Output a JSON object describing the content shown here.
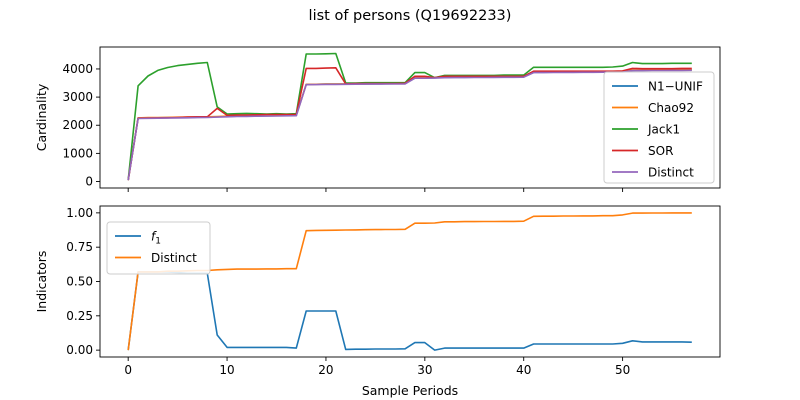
{
  "figure": {
    "title": "list of persons (Q19692233)"
  },
  "colors": {
    "N1-UNIF": "#1f77b4",
    "Chao92": "#ff7f0e",
    "Jack1": "#2ca02c",
    "SOR": "#d62728",
    "Distinct": "#9467bd",
    "f1": "#1f77b4",
    "DistinctRatio": "#ff7f0e"
  },
  "chart_data": [
    {
      "type": "line",
      "title": "list of persons (Q19692233)",
      "xlabel": "",
      "ylabel": "Cardinality",
      "xlim": [
        -2.85,
        59.85
      ],
      "ylim": [
        -230,
        4780
      ],
      "xticks": [
        0,
        10,
        20,
        30,
        40,
        50
      ],
      "yticks": [
        0,
        1000,
        2000,
        3000,
        4000
      ],
      "ytick_labels": [
        "0",
        "1000",
        "2000",
        "3000",
        "4000"
      ],
      "x_tick_labels_visible": false,
      "legend": "right",
      "grid": false,
      "x": [
        0,
        1,
        2,
        3,
        4,
        5,
        6,
        7,
        8,
        9,
        10,
        11,
        12,
        13,
        14,
        15,
        16,
        17,
        18,
        19,
        20,
        21,
        22,
        23,
        24,
        25,
        26,
        27,
        28,
        29,
        30,
        31,
        32,
        33,
        34,
        35,
        36,
        37,
        38,
        39,
        40,
        41,
        42,
        43,
        44,
        45,
        46,
        47,
        48,
        49,
        50,
        51,
        52,
        53,
        54,
        55,
        56,
        57
      ],
      "series": [
        {
          "name": "N1−UNIF",
          "color_key": "N1-UNIF",
          "values": [
            50,
            2250,
            2260,
            2265,
            2270,
            2275,
            2280,
            2285,
            2290,
            2300,
            2310,
            2320,
            2325,
            2330,
            2335,
            2340,
            2345,
            2350,
            3450,
            3455,
            3460,
            3462,
            3465,
            3468,
            3470,
            3472,
            3474,
            3476,
            3478,
            3680,
            3682,
            3685,
            3700,
            3702,
            3704,
            3706,
            3708,
            3710,
            3712,
            3714,
            3716,
            3880,
            3882,
            3884,
            3886,
            3888,
            3890,
            3892,
            3894,
            3896,
            3898,
            3950,
            3952,
            3954,
            3956,
            3958,
            3960,
            3962
          ]
        },
        {
          "name": "Chao92",
          "color_key": "Chao92",
          "values": [
            50,
            2260,
            2270,
            2275,
            2280,
            2285,
            2290,
            2295,
            2300,
            2310,
            2320,
            2330,
            2335,
            2340,
            2345,
            2350,
            2355,
            2360,
            3450,
            3455,
            3460,
            3462,
            3470,
            3472,
            3474,
            3476,
            3478,
            3480,
            3482,
            3690,
            3692,
            3694,
            3710,
            3712,
            3714,
            3716,
            3718,
            3720,
            3722,
            3724,
            3726,
            3890,
            3892,
            3894,
            3896,
            3898,
            3900,
            3902,
            3904,
            3906,
            3908,
            3960,
            3962,
            3964,
            3966,
            3968,
            3970,
            3972
          ]
        },
        {
          "name": "Jack1",
          "color_key": "Jack1",
          "values": [
            50,
            3400,
            3750,
            3950,
            4050,
            4120,
            4160,
            4200,
            4230,
            2650,
            2400,
            2410,
            2420,
            2410,
            2400,
            2410,
            2400,
            2410,
            4530,
            4530,
            4540,
            4550,
            3500,
            3500,
            3510,
            3510,
            3510,
            3510,
            3510,
            3870,
            3870,
            3690,
            3770,
            3770,
            3770,
            3770,
            3770,
            3770,
            3780,
            3780,
            3780,
            4060,
            4060,
            4060,
            4060,
            4060,
            4060,
            4060,
            4060,
            4070,
            4100,
            4230,
            4190,
            4190,
            4190,
            4200,
            4200,
            4200
          ]
        },
        {
          "name": "SOR",
          "color_key": "SOR",
          "values": [
            50,
            2250,
            2255,
            2260,
            2265,
            2275,
            2290,
            2300,
            2300,
            2600,
            2350,
            2360,
            2360,
            2370,
            2380,
            2380,
            2380,
            2380,
            4020,
            4020,
            4030,
            4040,
            3470,
            3480,
            3480,
            3480,
            3480,
            3480,
            3490,
            3740,
            3740,
            3690,
            3740,
            3740,
            3740,
            3740,
            3740,
            3740,
            3740,
            3740,
            3740,
            3920,
            3920,
            3920,
            3920,
            3920,
            3920,
            3920,
            3920,
            3920,
            3930,
            4020,
            4010,
            4010,
            4010,
            4010,
            4020,
            4020
          ]
        },
        {
          "name": "Distinct",
          "color_key": "Distinct",
          "values": [
            50,
            2240,
            2245,
            2250,
            2255,
            2260,
            2265,
            2270,
            2275,
            2290,
            2300,
            2310,
            2315,
            2320,
            2325,
            2330,
            2335,
            2340,
            3440,
            3445,
            3450,
            3452,
            3455,
            3458,
            3460,
            3462,
            3464,
            3466,
            3468,
            3670,
            3672,
            3675,
            3690,
            3692,
            3694,
            3696,
            3698,
            3700,
            3702,
            3704,
            3706,
            3870,
            3872,
            3874,
            3876,
            3878,
            3880,
            3882,
            3884,
            3886,
            3888,
            3940,
            3942,
            3944,
            3946,
            3948,
            3950,
            3952
          ]
        }
      ]
    },
    {
      "type": "line",
      "title": "",
      "xlabel": "Sample Periods",
      "ylabel": "Indicators",
      "xlim": [
        -2.85,
        59.85
      ],
      "ylim": [
        -0.05,
        1.05
      ],
      "xticks": [
        0,
        10,
        20,
        30,
        40,
        50
      ],
      "xtick_labels": [
        "0",
        "10",
        "20",
        "30",
        "40",
        "50"
      ],
      "yticks": [
        0,
        0.25,
        0.5,
        0.75,
        1.0
      ],
      "ytick_labels": [
        "0.00",
        "0.25",
        "0.50",
        "0.75",
        "1.00"
      ],
      "legend": "top-left",
      "grid": false,
      "x": [
        0,
        1,
        2,
        3,
        4,
        5,
        6,
        7,
        8,
        9,
        10,
        11,
        12,
        13,
        14,
        15,
        16,
        17,
        18,
        19,
        20,
        21,
        22,
        23,
        24,
        25,
        26,
        27,
        28,
        29,
        30,
        31,
        32,
        33,
        34,
        35,
        36,
        37,
        38,
        39,
        40,
        41,
        42,
        43,
        44,
        45,
        46,
        47,
        48,
        49,
        50,
        51,
        52,
        53,
        54,
        55,
        56,
        57
      ],
      "series": [
        {
          "name": "f1",
          "color_key": "f1",
          "values": [
            0.0,
            0.57,
            0.57,
            0.57,
            0.57,
            0.565,
            0.56,
            0.56,
            0.56,
            0.11,
            0.02,
            0.02,
            0.02,
            0.02,
            0.02,
            0.02,
            0.02,
            0.015,
            0.285,
            0.285,
            0.285,
            0.285,
            0.005,
            0.007,
            0.007,
            0.008,
            0.008,
            0.008,
            0.01,
            0.055,
            0.055,
            0.0,
            0.015,
            0.015,
            0.015,
            0.015,
            0.015,
            0.015,
            0.015,
            0.015,
            0.015,
            0.045,
            0.045,
            0.045,
            0.045,
            0.045,
            0.045,
            0.045,
            0.045,
            0.045,
            0.05,
            0.068,
            0.06,
            0.06,
            0.06,
            0.06,
            0.06,
            0.058
          ]
        },
        {
          "name": "Distinct",
          "color_key": "DistinctRatio",
          "values": [
            0.0,
            0.57,
            0.57,
            0.57,
            0.575,
            0.575,
            0.578,
            0.58,
            0.58,
            0.585,
            0.588,
            0.59,
            0.59,
            0.59,
            0.592,
            0.592,
            0.593,
            0.593,
            0.87,
            0.872,
            0.873,
            0.874,
            0.875,
            0.876,
            0.877,
            0.878,
            0.879,
            0.879,
            0.88,
            0.925,
            0.925,
            0.926,
            0.935,
            0.935,
            0.936,
            0.936,
            0.937,
            0.937,
            0.938,
            0.938,
            0.939,
            0.975,
            0.976,
            0.976,
            0.977,
            0.977,
            0.978,
            0.978,
            0.979,
            0.979,
            0.985,
            0.998,
            0.998,
            0.999,
            0.999,
            1.0,
            1.0,
            1.0
          ]
        }
      ]
    }
  ]
}
